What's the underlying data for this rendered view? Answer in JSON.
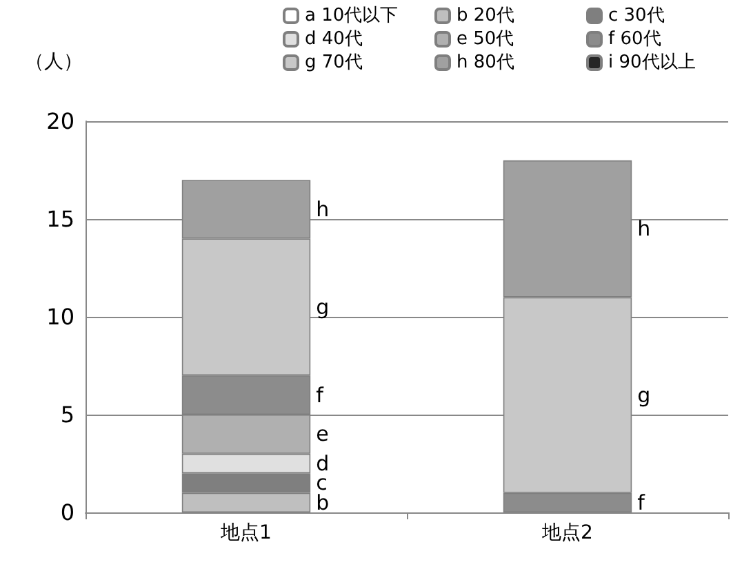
{
  "chart_data": {
    "type": "bar",
    "stacked": true,
    "ylabel": "（人）",
    "categories": [
      "地点1",
      "地点2"
    ],
    "series": [
      {
        "name": "a 10代以下",
        "color": "#ffffff",
        "values": [
          0,
          0
        ],
        "value_labels": [
          null,
          null
        ]
      },
      {
        "name": "b 20代",
        "color": "#bfbfbf",
        "values": [
          1,
          0
        ],
        "value_labels": [
          "b",
          null
        ]
      },
      {
        "name": "c 30代",
        "color": "#7f7f7f",
        "values": [
          1,
          0
        ],
        "value_labels": [
          "c",
          null
        ]
      },
      {
        "name": "d 40代",
        "color": "#e0e0e0",
        "values": [
          1,
          0
        ],
        "value_labels": [
          "d",
          null
        ]
      },
      {
        "name": "e 50代",
        "color": "#b0b0b0",
        "values": [
          2,
          0
        ],
        "value_labels": [
          "e",
          null
        ]
      },
      {
        "name": "f 60代",
        "color": "#8c8c8c",
        "values": [
          2,
          1
        ],
        "value_labels": [
          "f",
          "f"
        ]
      },
      {
        "name": "g 70代",
        "color": "#c8c8c8",
        "values": [
          7,
          10
        ],
        "value_labels": [
          "g",
          "g"
        ]
      },
      {
        "name": "h 80代",
        "color": "#a0a0a0",
        "values": [
          3,
          7
        ],
        "value_labels": [
          "h",
          "h"
        ]
      },
      {
        "name": "i 90代以上",
        "color": "#262626",
        "values": [
          0,
          0
        ],
        "value_labels": [
          null,
          null
        ]
      }
    ],
    "ylim": [
      0,
      20
    ],
    "yticks": [
      0,
      5,
      10,
      15,
      20
    ],
    "grid": "y",
    "legend": "top"
  }
}
